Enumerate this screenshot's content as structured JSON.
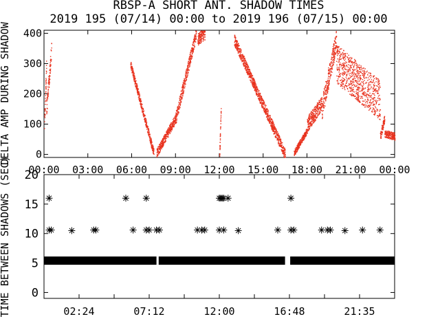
{
  "title_line1": "RBSP-A SHORT ANT. SHADOW TIMES",
  "title_line2": "2019 195 (07/14) 00:00 to 2019 196 (07/15) 00:00",
  "colors": {
    "points_top": "#e8321e",
    "points_bottom": "#000000",
    "axes": "#000000"
  },
  "chart_data": [
    {
      "type": "scatter",
      "ylabel": "DELTA AMP DURING SHADOW",
      "xlim": [
        "00:00",
        "24:00"
      ],
      "ylim": [
        -10,
        410
      ],
      "yticks": [
        0,
        100,
        200,
        300,
        400
      ],
      "xtick_labels": [
        "00:00",
        "03:00",
        "06:00",
        "09:00",
        "12:00",
        "15:00",
        "18:00",
        "21:00",
        "00:00"
      ],
      "series": [
        {
          "color": "#e8321e",
          "clusters": [
            {
              "t_start": 0.0,
              "t_end": 0.15,
              "y_start": 90,
              "y_end": 300,
              "spread": 50
            },
            {
              "t_start": 0.15,
              "t_end": 0.5,
              "y_start": 150,
              "y_end": 350,
              "spread": 60
            },
            {
              "t_start": 5.9,
              "t_end": 7.5,
              "y_start": 300,
              "y_end": 5,
              "spread": 25
            },
            {
              "t_start": 7.7,
              "t_end": 9.0,
              "y_start": 5,
              "y_end": 120,
              "spread": 30
            },
            {
              "t_start": 9.0,
              "t_end": 10.4,
              "y_start": 120,
              "y_end": 400,
              "spread": 40
            },
            {
              "t_start": 10.5,
              "t_end": 11.0,
              "y_start": 380,
              "y_end": 400,
              "spread": 40
            },
            {
              "t_start": 12.0,
              "t_end": 12.1,
              "y_start": 0,
              "y_end": 150,
              "spread": 20
            },
            {
              "t_start": 13.0,
              "t_end": 16.5,
              "y_start": 380,
              "y_end": 0,
              "spread": 35
            },
            {
              "t_start": 17.1,
              "t_end": 18.0,
              "y_start": 5,
              "y_end": 80,
              "spread": 20
            },
            {
              "t_start": 18.0,
              "t_end": 19.0,
              "y_start": 100,
              "y_end": 170,
              "spread": 50
            },
            {
              "t_start": 19.0,
              "t_end": 20.0,
              "y_start": 150,
              "y_end": 380,
              "spread": 70
            },
            {
              "t_start": 20.0,
              "t_end": 23.0,
              "y_start": 300,
              "y_end": 180,
              "spread": 130
            },
            {
              "t_start": 23.0,
              "t_end": 23.3,
              "y_start": 60,
              "y_end": 120,
              "spread": 30
            },
            {
              "t_start": 23.3,
              "t_end": 24.0,
              "y_start": 70,
              "y_end": 60,
              "spread": 25
            }
          ]
        }
      ]
    },
    {
      "type": "scatter",
      "ylabel": "TIME BETWEEN SHADOWS (SEC)",
      "xlim": [
        "00:00",
        "24:00"
      ],
      "ylim": [
        -1,
        20
      ],
      "yticks": [
        0,
        5,
        10,
        15,
        20
      ],
      "xtick_labels": [
        "02:24",
        "07:12",
        "12:00",
        "16:48",
        "21:35"
      ],
      "series": [
        {
          "color": "#000000",
          "bands": [
            {
              "t_start": 0.0,
              "t_end": 7.7,
              "y": 5.4
            },
            {
              "t_start": 7.85,
              "t_end": 16.5,
              "y": 5.4
            },
            {
              "t_start": 16.85,
              "t_end": 24.0,
              "y": 5.4
            }
          ],
          "points": [
            {
              "t": 0.35,
              "y": 16
            },
            {
              "t": 0.35,
              "y": 10.6
            },
            {
              "t": 0.5,
              "y": 10.6
            },
            {
              "t": 1.9,
              "y": 10.5
            },
            {
              "t": 3.4,
              "y": 10.6
            },
            {
              "t": 3.55,
              "y": 10.6
            },
            {
              "t": 5.6,
              "y": 16
            },
            {
              "t": 6.1,
              "y": 10.6
            },
            {
              "t": 7.0,
              "y": 16
            },
            {
              "t": 7.0,
              "y": 10.6
            },
            {
              "t": 7.2,
              "y": 10.6
            },
            {
              "t": 7.7,
              "y": 10.6
            },
            {
              "t": 7.9,
              "y": 10.6
            },
            {
              "t": 10.5,
              "y": 10.6
            },
            {
              "t": 10.8,
              "y": 10.6
            },
            {
              "t": 11.0,
              "y": 10.6
            },
            {
              "t": 12.0,
              "y": 16
            },
            {
              "t": 12.1,
              "y": 16
            },
            {
              "t": 12.2,
              "y": 16
            },
            {
              "t": 12.3,
              "y": 16
            },
            {
              "t": 12.6,
              "y": 16
            },
            {
              "t": 12.0,
              "y": 10.6
            },
            {
              "t": 12.3,
              "y": 10.6
            },
            {
              "t": 13.3,
              "y": 10.5
            },
            {
              "t": 16.0,
              "y": 10.6
            },
            {
              "t": 16.9,
              "y": 16
            },
            {
              "t": 16.9,
              "y": 10.6
            },
            {
              "t": 17.1,
              "y": 10.6
            },
            {
              "t": 19.0,
              "y": 10.6
            },
            {
              "t": 19.4,
              "y": 10.6
            },
            {
              "t": 19.6,
              "y": 10.6
            },
            {
              "t": 20.6,
              "y": 10.5
            },
            {
              "t": 21.8,
              "y": 10.6
            },
            {
              "t": 23.0,
              "y": 10.6
            }
          ]
        }
      ]
    }
  ]
}
